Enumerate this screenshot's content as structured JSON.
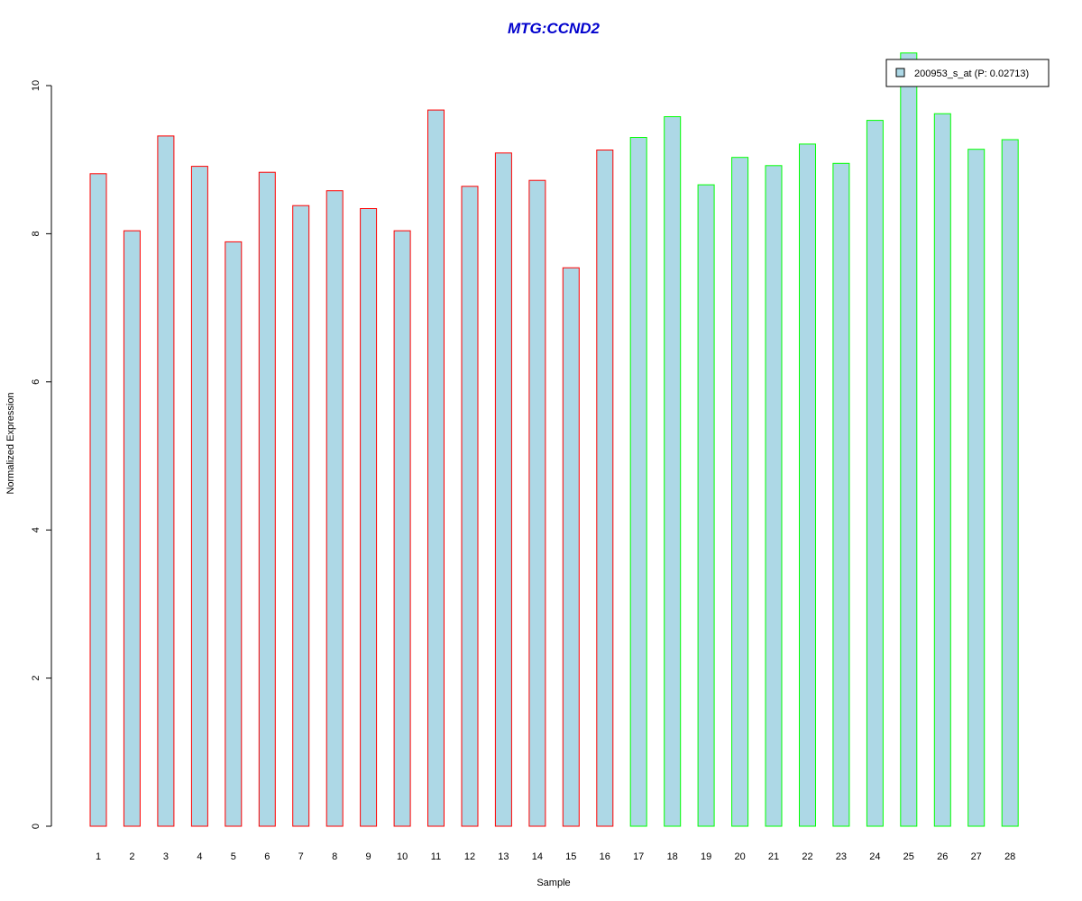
{
  "chart_data": {
    "type": "bar",
    "title": "MTG:CCND2",
    "xlabel": "Sample",
    "ylabel": "Normalized Expression",
    "ylim": [
      0,
      10
    ],
    "yticks": [
      0,
      2,
      4,
      6,
      8,
      10
    ],
    "grid": false,
    "categories": [
      "1",
      "2",
      "3",
      "4",
      "5",
      "6",
      "7",
      "8",
      "9",
      "10",
      "11",
      "12",
      "13",
      "14",
      "15",
      "16",
      "17",
      "18",
      "19",
      "20",
      "21",
      "22",
      "23",
      "24",
      "25",
      "26",
      "27",
      "28"
    ],
    "series": [
      {
        "name": "200953_s_at (P: 0.02713)",
        "values": [
          8.81,
          8.04,
          9.32,
          8.91,
          7.89,
          8.83,
          8.38,
          8.58,
          8.34,
          8.04,
          9.67,
          8.64,
          9.09,
          8.72,
          7.54,
          9.13,
          9.3,
          9.58,
          8.66,
          9.03,
          8.92,
          9.21,
          8.95,
          9.53,
          10.44,
          9.62,
          9.14,
          9.27
        ]
      }
    ],
    "groups": [
      "red",
      "red",
      "red",
      "red",
      "red",
      "red",
      "red",
      "red",
      "red",
      "red",
      "red",
      "red",
      "red",
      "red",
      "red",
      "red",
      "green",
      "green",
      "green",
      "green",
      "green",
      "green",
      "green",
      "green",
      "green",
      "green",
      "green",
      "green"
    ],
    "legend": {
      "label": "200953_s_at (P: 0.02713)",
      "position": "top-right"
    },
    "colors": {
      "bar_fill": "#add8e6",
      "group_red": "#ff0000",
      "group_green": "#00ff00",
      "title": "#0000cd",
      "axis": "#000000"
    }
  }
}
